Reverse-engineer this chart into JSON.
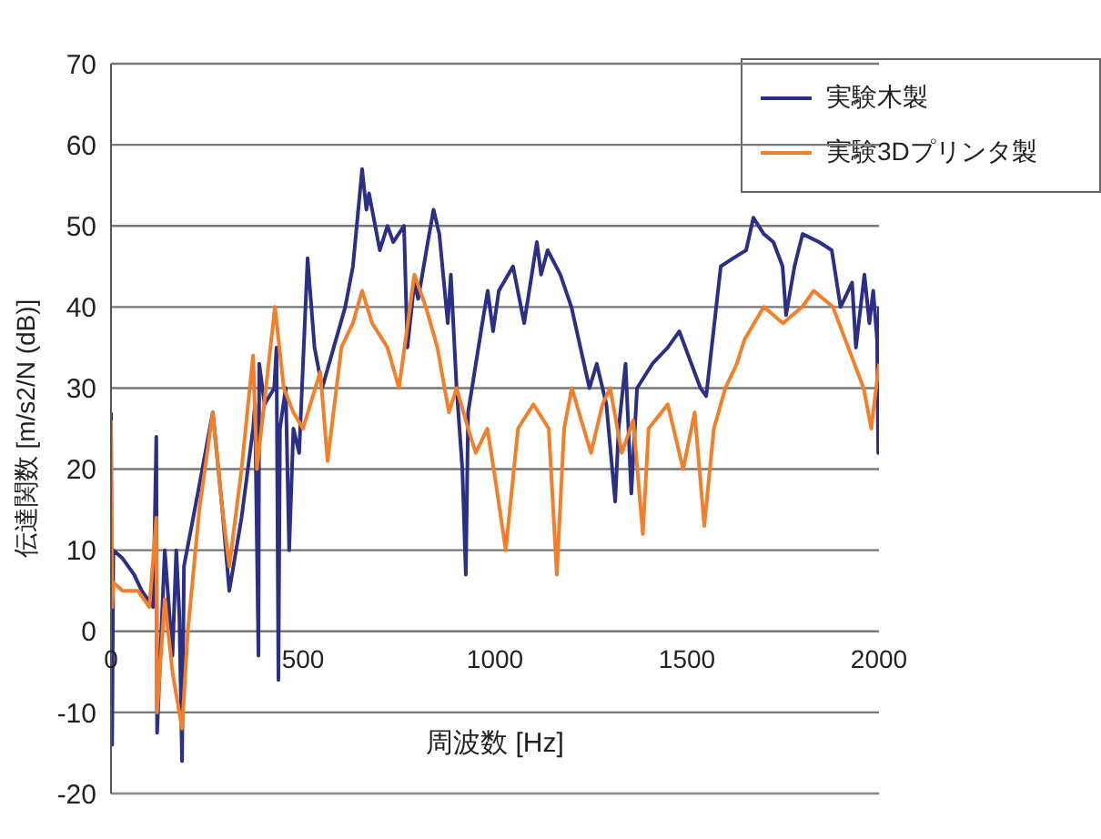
{
  "chart_data": {
    "type": "line",
    "xlabel": "周波数 [Hz]",
    "ylabel": "伝達関数 [m/s2/N (dB)]",
    "xlim": [
      0,
      2000
    ],
    "xticks": [
      0,
      500,
      1000,
      1500,
      2000
    ],
    "ylim": [
      -20,
      70
    ],
    "yticks": [
      -20,
      -10,
      0,
      10,
      20,
      30,
      40,
      50,
      60,
      70
    ],
    "grid": "y",
    "legend": "top right",
    "marker": "none",
    "line_style": "solid",
    "series": [
      {
        "name": "実験木製",
        "color": "#2b2f86",
        "x": [
          0,
          3,
          6,
          30,
          60,
          80,
          110,
          118,
          120,
          140,
          160,
          170,
          178,
          185,
          190,
          230,
          265,
          290,
          308,
          340,
          370,
          375,
          384,
          386,
          400,
          425,
          431,
          436,
          440,
          455,
          464,
          475,
          490,
          512,
          530,
          550,
          580,
          610,
          630,
          654,
          665,
          672,
          700,
          720,
          735,
          763,
          772,
          790,
          800,
          825,
          840,
          855,
          877,
          885,
          900,
          915,
          924,
          930,
          967,
          981,
          995,
          1010,
          1047,
          1076,
          1109,
          1120,
          1137,
          1170,
          1199,
          1246,
          1265,
          1290,
          1313,
          1322,
          1340,
          1355,
          1370,
          1410,
          1450,
          1480,
          1535,
          1550,
          1588,
          1620,
          1654,
          1673,
          1700,
          1725,
          1749,
          1758,
          1780,
          1801,
          1844,
          1877,
          1900,
          1930,
          1940,
          1962,
          1975,
          1985,
          1995,
          1998,
          2000
        ],
        "values": [
          27,
          -14,
          10,
          9,
          7,
          5,
          3,
          24,
          -12.5,
          10,
          -3,
          10,
          2,
          -16,
          8,
          18,
          27,
          15,
          5,
          14,
          25,
          28,
          -3,
          33,
          28,
          30,
          35,
          -6,
          25,
          30,
          10,
          25,
          22,
          46,
          35,
          30,
          35,
          40,
          45,
          57,
          52,
          54,
          47,
          50,
          48,
          50,
          35,
          43,
          41,
          48,
          52,
          49,
          38,
          44,
          30,
          20,
          7,
          27,
          38,
          42,
          37,
          42,
          45,
          38,
          48,
          44,
          47,
          44,
          40,
          30,
          33,
          28,
          16,
          25,
          33,
          17,
          30,
          33,
          35,
          37,
          30,
          29,
          45,
          46,
          47,
          51,
          49,
          48,
          45,
          39,
          45,
          49,
          48,
          47,
          40,
          43,
          35,
          44,
          38,
          42,
          36,
          22,
          40
        ]
      },
      {
        "name": "実験3Dプリンタ製",
        "color": "#f47f2a",
        "x": [
          0,
          3,
          6,
          30,
          70,
          100,
          118,
          120,
          140,
          160,
          185,
          200,
          230,
          265,
          290,
          308,
          340,
          370,
          380,
          427,
          450,
          475,
          500,
          545,
          564,
          600,
          630,
          654,
          680,
          720,
          750,
          790,
          820,
          850,
          880,
          900,
          930,
          950,
          980,
          1000,
          1028,
          1060,
          1100,
          1140,
          1161,
          1180,
          1200,
          1250,
          1280,
          1300,
          1330,
          1360,
          1385,
          1400,
          1450,
          1490,
          1520,
          1545,
          1570,
          1600,
          1630,
          1650,
          1700,
          1750,
          1800,
          1830,
          1880,
          1920,
          1960,
          1980,
          2000
        ],
        "values": [
          26,
          3,
          6,
          5,
          5,
          3,
          14,
          -10,
          4,
          -5,
          -12,
          0,
          15,
          27,
          15,
          8,
          20,
          34,
          20,
          40,
          30,
          27,
          25,
          32,
          21,
          35,
          38,
          42,
          38,
          35,
          30,
          44,
          40,
          35,
          27,
          30,
          25,
          22,
          25,
          19,
          10,
          25,
          28,
          25,
          7,
          25,
          30,
          22,
          28,
          30,
          22,
          26,
          12,
          25,
          28,
          20,
          27,
          13,
          25,
          30,
          33,
          36,
          40,
          38,
          40,
          42,
          40,
          35,
          30,
          25,
          33
        ]
      }
    ]
  }
}
